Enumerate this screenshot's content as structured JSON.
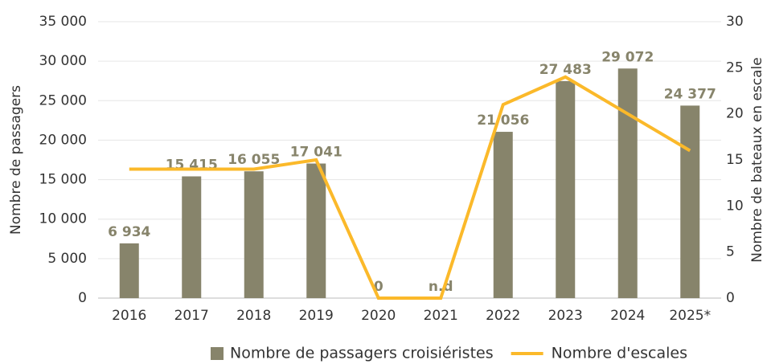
{
  "chart_data": {
    "type": "bar",
    "categories": [
      "2016",
      "2017",
      "2018",
      "2019",
      "2020",
      "2021",
      "2022",
      "2023",
      "2024",
      "2025*"
    ],
    "series": [
      {
        "name": "Nombre de passagers croisiéristes",
        "type": "bar",
        "color": "#87846b",
        "values": [
          6934,
          15415,
          16055,
          17041,
          0,
          null,
          21056,
          27483,
          29072,
          24377
        ],
        "value_labels": [
          "6 934",
          "15 415",
          "16 055",
          "17 041",
          "0",
          "n.d",
          "21 056",
          "27 483",
          "29 072",
          "24 377"
        ]
      },
      {
        "name": "Nombre d'escales",
        "type": "line",
        "axis": "y2",
        "color": "#fbb92a",
        "values": [
          14,
          14,
          14,
          15,
          0,
          0,
          21,
          24,
          20,
          16
        ]
      }
    ],
    "ylabel": "Nombre de passagers",
    "y2label": "Nombre de bateaux en escale",
    "ylim": [
      0,
      35000
    ],
    "yticks": [
      0,
      {
        "value": 5000,
        "label": "5 000"
      },
      {
        "value": 10000,
        "label": "10 000"
      },
      {
        "value": 15000,
        "label": "15 000"
      },
      {
        "value": 20000,
        "label": "20 000"
      },
      {
        "value": 25000,
        "label": "25 000"
      },
      {
        "value": 30000,
        "label": "30 000"
      },
      {
        "value": 35000,
        "label": "35 000"
      }
    ],
    "y2lim": [
      0,
      30
    ],
    "y2ticks": [
      0,
      5,
      10,
      15,
      20,
      25,
      30
    ],
    "grid": true,
    "legend": "bottom"
  }
}
